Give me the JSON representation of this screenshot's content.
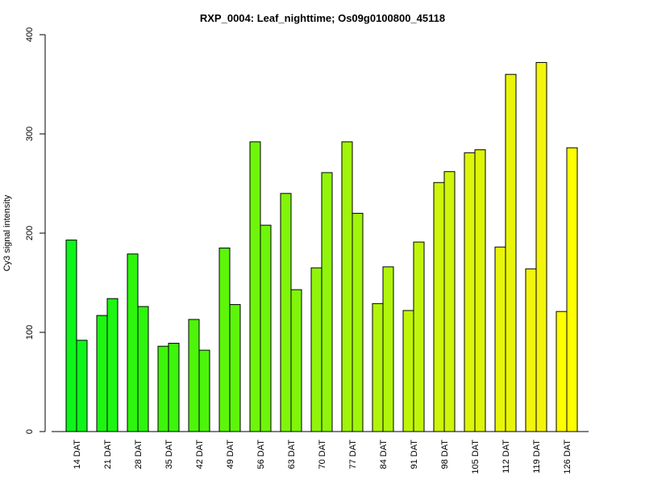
{
  "chart_data": {
    "type": "bar",
    "title": "RXP_0004: Leaf_nighttime; Os09g0100800_45118",
    "xlabel": "",
    "ylabel": "Cy3 signal intensity",
    "ylim": [
      0,
      400
    ],
    "yticks": [
      0,
      100,
      200,
      300,
      400
    ],
    "grid": false,
    "categories": [
      "14 DAT",
      "21 DAT",
      "28 DAT",
      "35 DAT",
      "42 DAT",
      "49 DAT",
      "56 DAT",
      "63 DAT",
      "70 DAT",
      "77 DAT",
      "84 DAT",
      "91 DAT",
      "98 DAT",
      "105 DAT",
      "112 DAT",
      "119 DAT",
      "126 DAT"
    ],
    "values": [
      [
        193,
        92
      ],
      [
        117,
        134
      ],
      [
        179,
        126
      ],
      [
        86,
        89
      ],
      [
        113,
        82
      ],
      [
        185,
        128
      ],
      [
        292,
        208
      ],
      [
        240,
        143
      ],
      [
        165,
        261
      ],
      [
        292,
        220
      ],
      [
        129,
        166
      ],
      [
        122,
        191
      ],
      [
        251,
        262
      ],
      [
        281,
        284
      ],
      [
        186,
        360
      ],
      [
        164,
        372
      ],
      [
        121,
        286
      ]
    ],
    "colors": [
      "#0df51a",
      "#1df512",
      "#2df50d",
      "#3df50a",
      "#4df50a",
      "#5df50a",
      "#6ff50a",
      "#80f50a",
      "#90f50a",
      "#a0f50a",
      "#b0f50a",
      "#c0f50a",
      "#cef50a",
      "#dcf50a",
      "#e8f50a",
      "#f3f50a",
      "#ffff00"
    ]
  }
}
